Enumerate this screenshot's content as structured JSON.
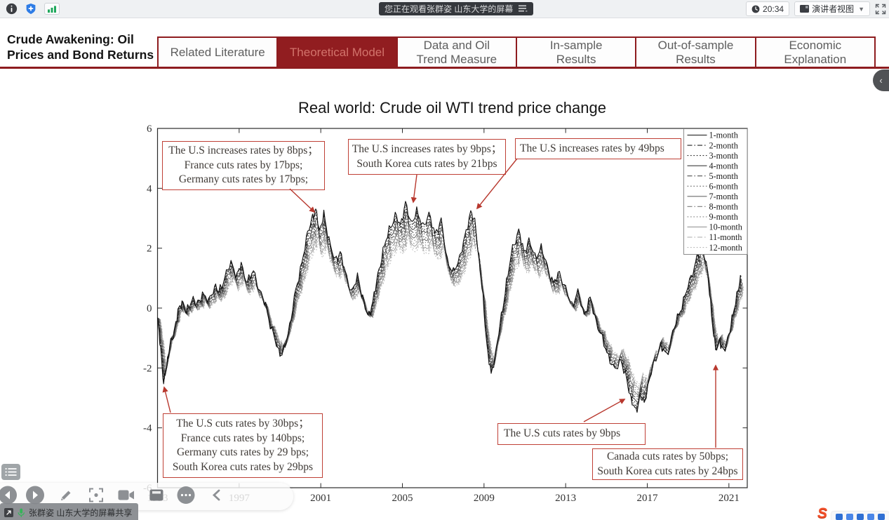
{
  "colors": {
    "accent_dark_red": "#8e1c1f",
    "annotation_red": "#bf4036",
    "active_tab_text": "#d2736b",
    "mic_green": "#35b558",
    "ime_orange": "#f2502a"
  },
  "meeting_bar": {
    "watching_label": "您正在观看张群姿 山东大学的屏幕",
    "time": "20:34",
    "view_mode_label": "演讲者视图"
  },
  "slide": {
    "title": "Crude Awakening: Oil\nPrices and  Bond Returns",
    "tabs": [
      {
        "label": "Related Literature",
        "active": false
      },
      {
        "label": "Theoretical Model",
        "active": true
      },
      {
        "label": "Data and Oil\nTrend Measure",
        "active": false
      },
      {
        "label": "In-sample\nResults",
        "active": false
      },
      {
        "label": "Out-of-sample\nResults",
        "active": false
      },
      {
        "label": "Economic\nExplanation",
        "active": false
      }
    ]
  },
  "annotations": {
    "inc_2000": {
      "lines": [
        "The U.S increases rates by 8bps；",
        "France cuts rates by 17bps;",
        "Germany cuts rates by 17bps;"
      ]
    },
    "inc_2005": {
      "lines": [
        "The U.S increases rates by 9bps；",
        "South Korea cuts rates by 21bps"
      ]
    },
    "inc_2008": {
      "lines": [
        "The U.S increases rates by 49bps"
      ]
    },
    "cut_1993": {
      "lines": [
        "The U.S cuts rates by 30bps；",
        "France cuts rates by 140bps;",
        "Germany cuts rates by 29 bps;",
        "South Korea cuts rates by 29bps"
      ]
    },
    "cut_2016": {
      "lines": [
        "The U.S cuts rates by 9bps"
      ]
    },
    "cut_2020": {
      "lines": [
        "Canada cuts rates by 50bps;",
        "South Korea cuts rates by 24bps"
      ]
    }
  },
  "chart_data": {
    "type": "line",
    "title": "Real world: Crude oil WTI trend price change",
    "xlabel": "",
    "ylabel": "",
    "xlim": [
      1993,
      2021.9
    ],
    "ylim": [
      -6,
      6
    ],
    "x_ticks": [
      1993,
      1997,
      2001,
      2005,
      2009,
      2013,
      2017,
      2021
    ],
    "y_ticks": [
      6,
      4,
      2,
      0,
      -2,
      -4,
      -6
    ],
    "grid": false,
    "legend_position": "top-right",
    "series_names": [
      "1-month",
      "2-month",
      "3-month",
      "4-month",
      "5-month",
      "6-month",
      "7-month",
      "8-month",
      "9-month",
      "10-month",
      "11-month",
      "12-month"
    ],
    "series_style_note": "12 nearly identical overlapping trend lines; 1-month darkest black, progressively lighter gray to 12-month; line styles cycle solid / dash-dot / dotted",
    "base_series_x": [
      1993.0,
      1993.15,
      1993.3,
      1993.45,
      1993.6,
      1993.8,
      1994.0,
      1994.2,
      1994.4,
      1994.7,
      1994.9,
      1995.2,
      1995.5,
      1995.8,
      1996.0,
      1996.3,
      1996.6,
      1996.9,
      1997.1,
      1997.4,
      1997.7,
      1998.0,
      1998.3,
      1998.6,
      1998.9,
      1999.1,
      1999.4,
      1999.7,
      2000.0,
      2000.3,
      2000.55,
      2000.75,
      2000.95,
      2001.15,
      2001.4,
      2001.7,
      2001.95,
      2002.2,
      2002.5,
      2002.8,
      2003.05,
      2003.3,
      2003.55,
      2003.8,
      2004.05,
      2004.35,
      2004.65,
      2004.9,
      2005.15,
      2005.4,
      2005.7,
      2006.0,
      2006.3,
      2006.6,
      2006.9,
      2007.2,
      2007.5,
      2007.8,
      2008.05,
      2008.35,
      2008.55,
      2008.75,
      2008.95,
      2009.15,
      2009.35,
      2009.6,
      2009.85,
      2010.1,
      2010.4,
      2010.7,
      2010.95,
      2011.2,
      2011.5,
      2011.8,
      2012.1,
      2012.4,
      2012.7,
      2013.0,
      2013.3,
      2013.6,
      2013.9,
      2014.2,
      2014.5,
      2014.8,
      2015.1,
      2015.4,
      2015.7,
      2016.0,
      2016.2,
      2016.45,
      2016.65,
      2016.85,
      2017.05,
      2017.35,
      2017.65,
      2017.95,
      2018.25,
      2018.55,
      2018.85,
      2019.15,
      2019.45,
      2019.7,
      2019.95,
      2020.15,
      2020.35,
      2020.55,
      2020.75,
      2021.0,
      2021.2,
      2021.45,
      2021.6
    ],
    "base_series_y": [
      -0.4,
      -1.3,
      -2.55,
      -1.9,
      -1.3,
      -0.8,
      -0.15,
      0.25,
      -0.2,
      0.35,
      0.05,
      0.5,
      0.2,
      0.75,
      0.5,
      1.05,
      1.5,
      1.1,
      1.45,
      0.85,
      1.25,
      0.55,
      0.1,
      -0.75,
      -1.35,
      -1.6,
      -0.85,
      0.3,
      1.3,
      2.3,
      3.0,
      3.25,
      2.6,
      3.1,
      2.3,
      1.55,
      1.9,
      1.15,
      0.55,
      1.0,
      0.35,
      -0.3,
      0.2,
      1.1,
      1.9,
      2.6,
      3.1,
      2.75,
      3.5,
      2.85,
      3.2,
      2.75,
      3.1,
      2.5,
      2.9,
      1.6,
      1.15,
      1.7,
      2.3,
      3.25,
      2.85,
      1.7,
      0.3,
      -1.3,
      -2.25,
      -1.35,
      -0.3,
      0.85,
      2.0,
      2.6,
      1.85,
      2.25,
      1.7,
      2.0,
      1.4,
      0.8,
      1.2,
      0.6,
      0.1,
      0.5,
      -0.2,
      0.3,
      -0.45,
      -1.05,
      -1.6,
      -2.1,
      -1.7,
      -2.45,
      -3.0,
      -3.5,
      -2.9,
      -3.2,
      -2.5,
      -1.8,
      -1.25,
      -1.6,
      -0.8,
      -0.2,
      0.4,
      1.05,
      1.7,
      2.15,
      1.2,
      -0.2,
      -1.45,
      -1.05,
      -1.5,
      -0.85,
      -0.25,
      0.65,
      1.05
    ]
  },
  "screen_share_toast": "张群姿 山东大学的屏幕共享"
}
